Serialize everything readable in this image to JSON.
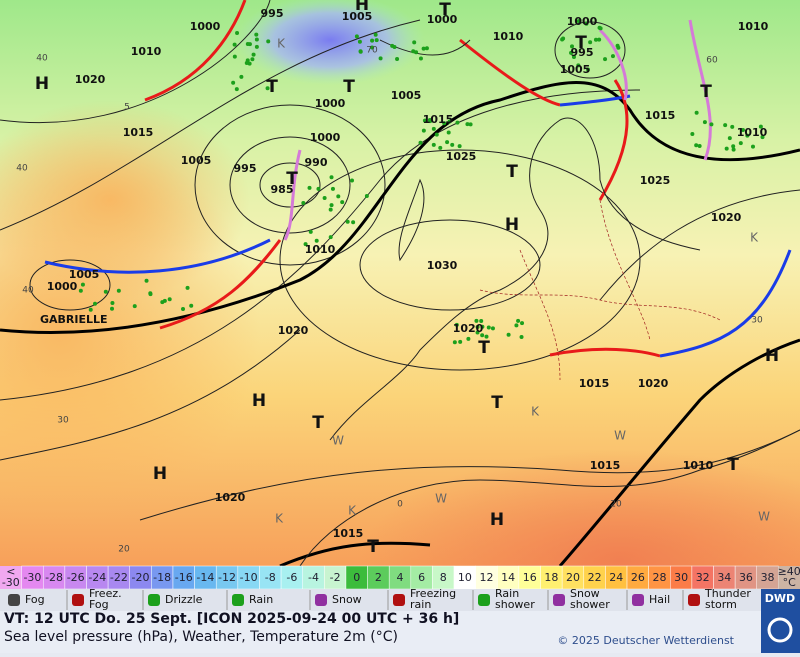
{
  "map": {
    "pressure_labels": [
      "1000",
      "995",
      "1005",
      "1000",
      "1000",
      "1010",
      "1010",
      "1010",
      "995",
      "1005",
      "1020",
      "1000",
      "1005",
      "1015",
      "1000",
      "1015",
      "1015",
      "1010",
      "1025",
      "1005",
      "995",
      "990",
      "985",
      "1025",
      "1020",
      "1010",
      "1030",
      "1005",
      "1000",
      "1020",
      "1020",
      "1015",
      "1020",
      "1015",
      "1010",
      "1020",
      "1015"
    ],
    "centers": [
      "H",
      "T",
      "T",
      "H",
      "T",
      "T",
      "T",
      "T",
      "T",
      "H",
      "H",
      "T",
      "H",
      "T",
      "T",
      "H",
      "T",
      "H",
      "T"
    ],
    "annotations": [
      "K",
      "K",
      "K",
      "K",
      "K",
      "W",
      "W",
      "W",
      "W"
    ],
    "temperature_labels": [
      "40",
      "5",
      "40",
      "40",
      "30",
      "20",
      "70",
      "60",
      "30",
      "20",
      "0"
    ],
    "storm_name": "GABRIELLE"
  },
  "scale": {
    "first": [
      "<",
      "-30"
    ],
    "labels": [
      "-30",
      "-28",
      "-26",
      "-24",
      "-22",
      "-20",
      "-18",
      "-16",
      "-14",
      "-12",
      "-10",
      "-8",
      "-6",
      "-4",
      "-2",
      "0",
      "2",
      "4",
      "6",
      "8",
      "10",
      "12",
      "14",
      "16",
      "18",
      "20",
      "22",
      "24",
      "26",
      "28",
      "30",
      "32",
      "34",
      "36",
      "38"
    ],
    "last": [
      "≥40",
      "°C"
    ],
    "first_color": "#f0a8f0",
    "colors": [
      "#e488f0",
      "#d888f0",
      "#c888f0",
      "#b888f0",
      "#a888f0",
      "#8c88f0",
      "#7898f0",
      "#68a8f0",
      "#68b8f0",
      "#78c8f0",
      "#88d8f4",
      "#98e4f4",
      "#a8f0f0",
      "#b8f4e0",
      "#c8f4d0",
      "#3cbc3c",
      "#5ccc5c",
      "#80dc80",
      "#a4eca4",
      "#c8f8c8",
      "#ffffff",
      "#ffffe0",
      "#ffffc0",
      "#ffff98",
      "#fff070",
      "#ffe060",
      "#ffd24c",
      "#ffc040",
      "#ffaa40",
      "#ff9444",
      "#fb7c48",
      "#f47464",
      "#ec8474",
      "#e09484",
      "#d4a494"
    ],
    "last_color": "#ccb4a4"
  },
  "legend": {
    "items": [
      [
        "Fog"
      ],
      [
        "Freez.",
        "Fog"
      ],
      [
        "Drizzle"
      ],
      [
        "Rain"
      ],
      [
        "Snow"
      ],
      [
        "Freezing",
        "rain"
      ],
      [
        "Rain",
        "shower"
      ],
      [
        "Snow",
        "shower"
      ],
      [
        "Hail"
      ],
      [
        "Thunder",
        "storm"
      ]
    ]
  },
  "footer": {
    "valid_time": "VT: 12 UTC Do.  25 Sept. [ICON 2025-09-24  00 UTC + 36 h]",
    "description": "Sea level pressure (hPa), Weather, Temperature 2m (°C)",
    "copyright": "© 2025 Deutscher Wetterdienst",
    "logo": "DWD"
  }
}
